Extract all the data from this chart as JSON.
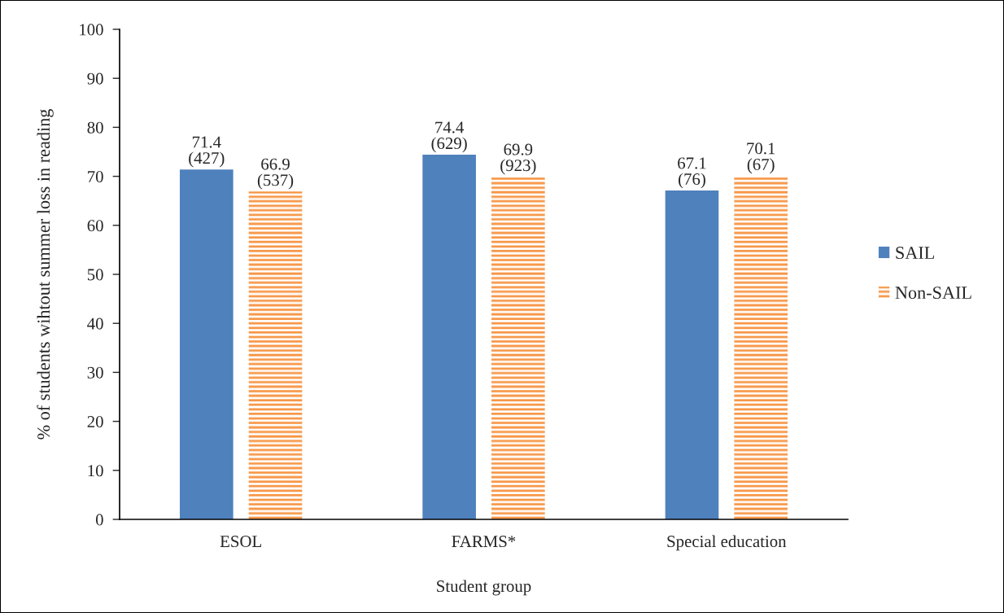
{
  "chart_data": {
    "type": "bar",
    "xlabel": "Student group",
    "ylabel": "% of students wihtout summer loss in reading",
    "categories": [
      "ESOL",
      "FARMS*",
      "Special education"
    ],
    "series": [
      {
        "name": "SAIL",
        "color": "#4f81bd",
        "values": [
          71.4,
          74.4,
          67.1
        ],
        "value_labels": [
          "71.4\n(427)",
          "74.4\n(629)",
          "67.1\n(76)"
        ]
      },
      {
        "name": "Non-SAIL",
        "color": "#f79646",
        "values": [
          66.9,
          69.9,
          70.1
        ],
        "value_labels": [
          "66.9\n(537)",
          "69.9\n(923)",
          "70.1\n(67)"
        ]
      }
    ],
    "ylim": [
      0,
      100
    ],
    "yticks": [
      0,
      10,
      20,
      30,
      40,
      50,
      60,
      70,
      80,
      90,
      100
    ],
    "grid": false,
    "legend": "right"
  }
}
